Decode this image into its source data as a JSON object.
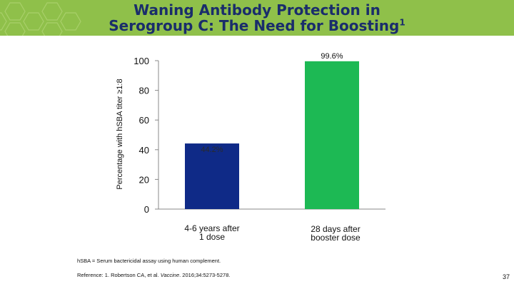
{
  "slide": {
    "title_main": "Waning Antibody Protection in",
    "title_line2": "Serogroup C: The Need for Boosting",
    "title_superscript": "1",
    "footnote": "hSBA = Serum bactericidal assay using human complement.",
    "reference_prefix": "Reference: 1. Robertson CA, et al. ",
    "reference_journal": "Vaccine",
    "reference_suffix": ". 2016;34:5273-5278.",
    "page_number": "37",
    "colors": {
      "header_green": "#8fc04a",
      "title_navy": "#1a2d6b"
    }
  },
  "chart_data": {
    "type": "bar",
    "title": "",
    "ylabel": "Percentage with hSBA titer ≥1:8",
    "xlabel": "",
    "ylim": [
      0,
      100
    ],
    "yticks": [
      0,
      20,
      40,
      60,
      80,
      100
    ],
    "grid": false,
    "categories": [
      [
        "4-6 years after",
        "1 dose"
      ],
      [
        "28 days after",
        "booster dose"
      ]
    ],
    "values": [
      44.2,
      99.6
    ],
    "data_labels": [
      "44.2%",
      "99.6%"
    ],
    "bar_colors": [
      "#0f2a87",
      "#1db954"
    ]
  }
}
